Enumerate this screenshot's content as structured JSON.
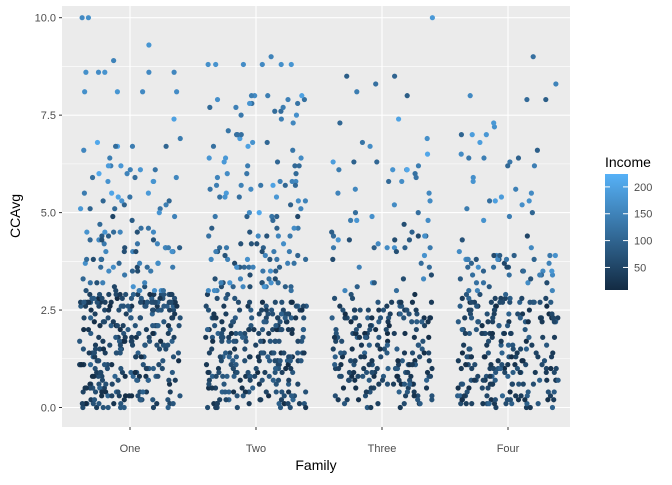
{
  "chart_data": {
    "type": "scatter",
    "xlabel": "Family",
    "ylabel": "CCAvg",
    "categories": [
      "One",
      "Two",
      "Three",
      "Four"
    ],
    "y_ticks": [
      "0.0",
      "2.5",
      "5.0",
      "7.5",
      "10.0"
    ],
    "ylim": [
      -0.5,
      10.3
    ],
    "grid": true,
    "jitter": "horizontal jitter within each Family category",
    "color_legend": {
      "title": "Income",
      "ticks": [
        "50",
        "100",
        "150",
        "200"
      ],
      "range": [
        8,
        224
      ],
      "low_color": "#132B43",
      "high_color": "#56B1F7"
    },
    "series": [
      {
        "category": "One",
        "points": [
          {
            "x_offset": -0.38,
            "y": 10.0,
            "income": 160
          },
          {
            "x_offset": -0.33,
            "y": 10.0,
            "income": 170
          },
          {
            "x_offset": 0.15,
            "y": 9.3,
            "income": 180
          },
          {
            "x_offset": -0.13,
            "y": 8.9,
            "income": 150
          },
          {
            "x_offset": -0.35,
            "y": 8.6,
            "income": 170
          },
          {
            "x_offset": -0.2,
            "y": 8.6,
            "income": 175
          },
          {
            "x_offset": -0.25,
            "y": 8.6,
            "income": 165
          },
          {
            "x_offset": 0.15,
            "y": 8.6,
            "income": 160
          },
          {
            "x_offset": 0.35,
            "y": 8.6,
            "income": 155
          },
          {
            "x_offset": -0.36,
            "y": 8.1,
            "income": 170
          },
          {
            "x_offset": -0.1,
            "y": 8.1,
            "income": 180
          },
          {
            "x_offset": 0.37,
            "y": 8.1,
            "income": 165
          },
          {
            "x_offset": 0.1,
            "y": 8.1,
            "income": 160
          }
        ]
      },
      {
        "category": "Two",
        "points": [
          {
            "x_offset": -0.38,
            "y": 8.8,
            "income": 170
          },
          {
            "x_offset": -0.32,
            "y": 8.8,
            "income": 175
          },
          {
            "x_offset": -0.1,
            "y": 8.8,
            "income": 165
          },
          {
            "x_offset": 0.05,
            "y": 8.8,
            "income": 160
          },
          {
            "x_offset": 0.12,
            "y": 9.0,
            "income": 150
          },
          {
            "x_offset": 0.2,
            "y": 8.8,
            "income": 170
          },
          {
            "x_offset": 0.28,
            "y": 8.8,
            "income": 180
          }
        ]
      },
      {
        "category": "Three",
        "points": [
          {
            "x_offset": 0.4,
            "y": 10.0,
            "income": 185
          },
          {
            "x_offset": -0.28,
            "y": 8.5,
            "income": 90
          },
          {
            "x_offset": 0.1,
            "y": 8.5,
            "income": 100
          },
          {
            "x_offset": -0.05,
            "y": 8.3,
            "income": 120
          },
          {
            "x_offset": -0.2,
            "y": 8.1,
            "income": 140
          },
          {
            "x_offset": 0.2,
            "y": 8.0,
            "income": 90
          }
        ]
      },
      {
        "category": "Four",
        "points": [
          {
            "x_offset": 0.2,
            "y": 9.0,
            "income": 120
          },
          {
            "x_offset": 0.38,
            "y": 8.3,
            "income": 150
          },
          {
            "x_offset": -0.3,
            "y": 8.0,
            "income": 160
          },
          {
            "x_offset": 0.15,
            "y": 7.9,
            "income": 110
          },
          {
            "x_offset": 0.3,
            "y": 7.9,
            "income": 90
          }
        ]
      }
    ]
  }
}
